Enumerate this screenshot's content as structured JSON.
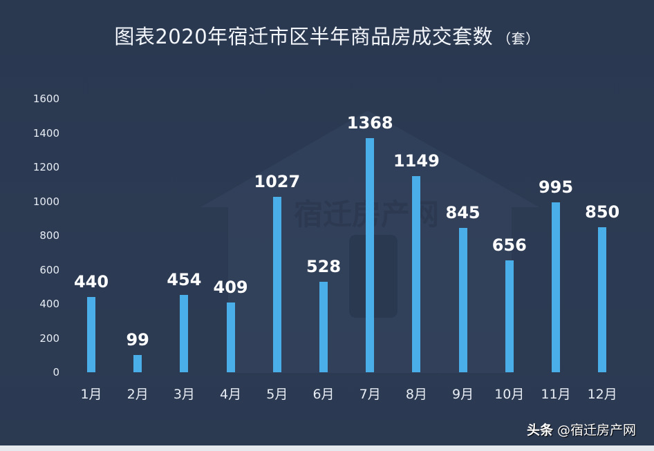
{
  "title": "图表2020年宿迁市区半年商品房成交套数",
  "title_unit": "（套）",
  "watermark_text": "宿迁房产网",
  "credit": {
    "platform": "头条",
    "handle": "@宿迁房产网"
  },
  "colors": {
    "background": "#2b3a52",
    "bar": "#4aaee9",
    "text": "#ffffff"
  },
  "chart_data": {
    "type": "bar",
    "title": "图表2020年宿迁市区半年商品房成交套数（套）",
    "xlabel": "",
    "ylabel": "",
    "categories": [
      "1月",
      "2月",
      "3月",
      "4月",
      "5月",
      "6月",
      "7月",
      "8月",
      "9月",
      "10月",
      "11月",
      "12月"
    ],
    "values": [
      440,
      99,
      454,
      409,
      1027,
      528,
      1368,
      1149,
      845,
      656,
      995,
      850
    ],
    "ylim": [
      0,
      1600
    ],
    "yticks": [
      "0",
      "200",
      "400",
      "600",
      "800",
      "1000",
      "1200",
      "1400",
      "1600"
    ],
    "grid": false,
    "legend": null,
    "data_labels": true
  }
}
